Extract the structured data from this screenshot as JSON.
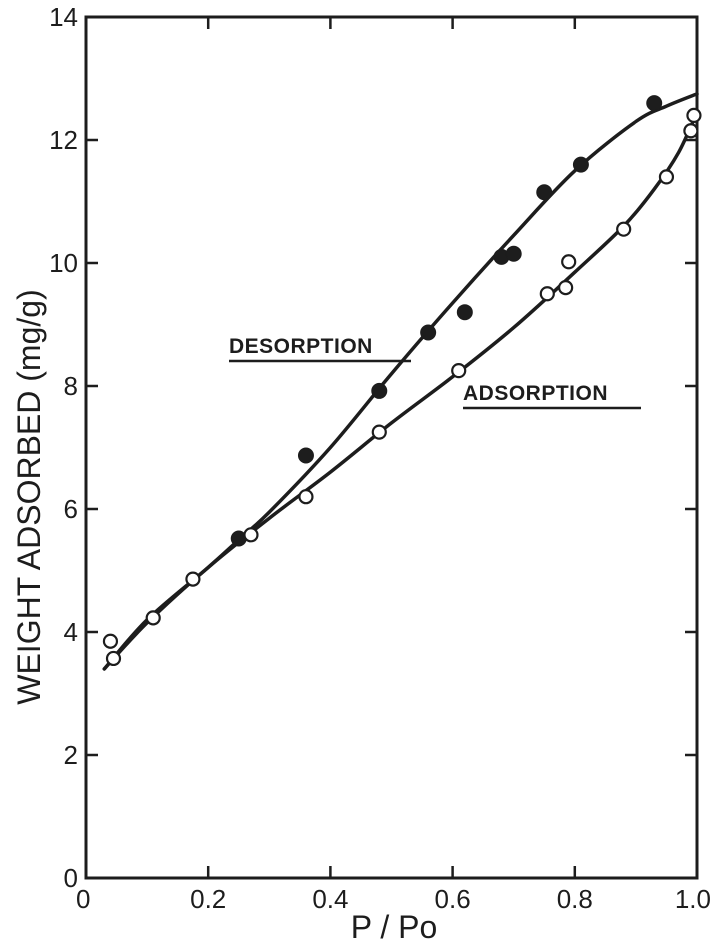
{
  "chart_data": {
    "type": "scatter",
    "title": "",
    "xlabel": "P / Po",
    "ylabel": "WEIGHT ADSORBED (mg/g)",
    "xlim": [
      0,
      1.0
    ],
    "ylim": [
      0,
      14
    ],
    "x_ticks": [
      "0",
      "0.2",
      "0.4",
      "0.6",
      "0.8",
      "1.0"
    ],
    "y_ticks": [
      "0",
      "2",
      "4",
      "6",
      "8",
      "10",
      "12",
      "14"
    ],
    "grid": false,
    "series": [
      {
        "name": "DESORPTION",
        "marker": "filled-circle",
        "color": "#1d1d1d",
        "points": [
          {
            "x": 0.25,
            "y": 5.52
          },
          {
            "x": 0.36,
            "y": 6.87
          },
          {
            "x": 0.48,
            "y": 7.92
          },
          {
            "x": 0.56,
            "y": 8.87
          },
          {
            "x": 0.62,
            "y": 9.2
          },
          {
            "x": 0.68,
            "y": 10.1
          },
          {
            "x": 0.7,
            "y": 10.15
          },
          {
            "x": 0.75,
            "y": 11.15
          },
          {
            "x": 0.81,
            "y": 11.6
          },
          {
            "x": 0.93,
            "y": 12.6
          }
        ],
        "curve": [
          [
            0.03,
            3.4
          ],
          [
            0.1,
            4.2
          ],
          [
            0.2,
            5.05
          ],
          [
            0.25,
            5.5
          ],
          [
            0.3,
            5.95
          ],
          [
            0.4,
            7.0
          ],
          [
            0.5,
            8.2
          ],
          [
            0.6,
            9.35
          ],
          [
            0.7,
            10.45
          ],
          [
            0.8,
            11.5
          ],
          [
            0.9,
            12.3
          ],
          [
            0.95,
            12.55
          ],
          [
            1.0,
            12.75
          ]
        ]
      },
      {
        "name": "ADSORPTION",
        "marker": "open-circle",
        "color": "#1d1d1d",
        "points": [
          {
            "x": 0.04,
            "y": 3.85
          },
          {
            "x": 0.045,
            "y": 3.57
          },
          {
            "x": 0.11,
            "y": 4.23
          },
          {
            "x": 0.175,
            "y": 4.86
          },
          {
            "x": 0.27,
            "y": 5.58
          },
          {
            "x": 0.36,
            "y": 6.2
          },
          {
            "x": 0.48,
            "y": 7.25
          },
          {
            "x": 0.61,
            "y": 8.25
          },
          {
            "x": 0.755,
            "y": 9.5
          },
          {
            "x": 0.785,
            "y": 9.6
          },
          {
            "x": 0.79,
            "y": 10.02
          },
          {
            "x": 0.88,
            "y": 10.55
          },
          {
            "x": 0.95,
            "y": 11.4
          },
          {
            "x": 0.99,
            "y": 12.15
          },
          {
            "x": 0.995,
            "y": 12.4
          }
        ],
        "curve": [
          [
            0.03,
            3.4
          ],
          [
            0.1,
            4.15
          ],
          [
            0.2,
            5.05
          ],
          [
            0.3,
            5.85
          ],
          [
            0.4,
            6.6
          ],
          [
            0.5,
            7.4
          ],
          [
            0.6,
            8.15
          ],
          [
            0.7,
            8.95
          ],
          [
            0.8,
            9.85
          ],
          [
            0.88,
            10.6
          ],
          [
            0.93,
            11.2
          ],
          [
            0.97,
            11.8
          ],
          [
            1.0,
            12.45
          ]
        ]
      }
    ]
  }
}
